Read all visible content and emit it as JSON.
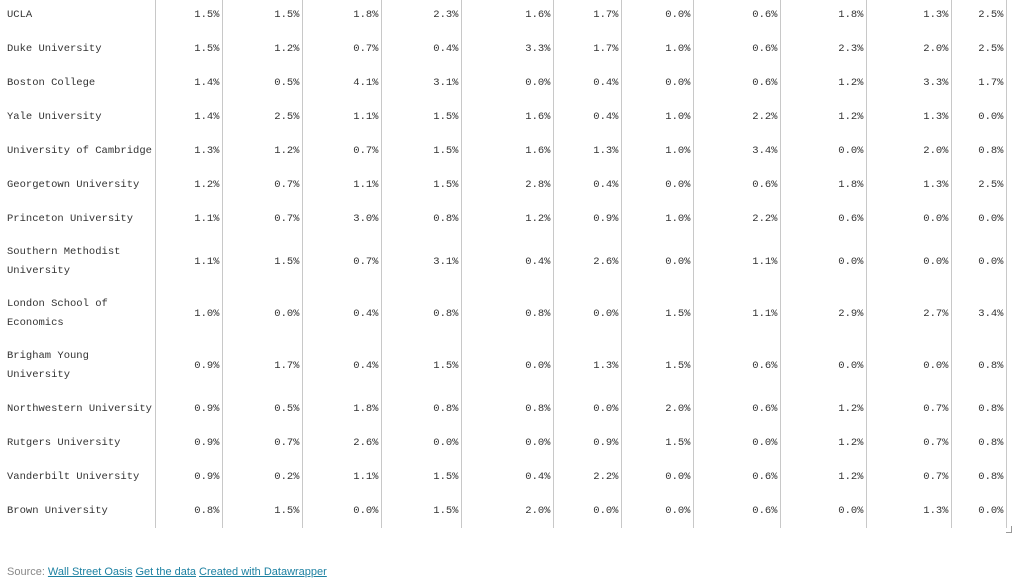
{
  "table": {
    "rows": [
      {
        "name": "UCLA",
        "values": [
          "1.5%",
          "1.5%",
          "1.8%",
          "2.3%",
          "1.6%",
          "1.7%",
          "0.0%",
          "0.6%",
          "1.8%",
          "1.3%",
          "2.5%"
        ]
      },
      {
        "name": "Duke University",
        "values": [
          "1.5%",
          "1.2%",
          "0.7%",
          "0.4%",
          "3.3%",
          "1.7%",
          "1.0%",
          "0.6%",
          "2.3%",
          "2.0%",
          "2.5%"
        ]
      },
      {
        "name": "Boston College",
        "values": [
          "1.4%",
          "0.5%",
          "4.1%",
          "3.1%",
          "0.0%",
          "0.4%",
          "0.0%",
          "0.6%",
          "1.2%",
          "3.3%",
          "1.7%"
        ]
      },
      {
        "name": "Yale University",
        "values": [
          "1.4%",
          "2.5%",
          "1.1%",
          "1.5%",
          "1.6%",
          "0.4%",
          "1.0%",
          "2.2%",
          "1.2%",
          "1.3%",
          "0.0%"
        ]
      },
      {
        "name": "University of Cambridge",
        "values": [
          "1.3%",
          "1.2%",
          "0.7%",
          "1.5%",
          "1.6%",
          "1.3%",
          "1.0%",
          "3.4%",
          "0.0%",
          "2.0%",
          "0.8%"
        ]
      },
      {
        "name": "Georgetown University",
        "values": [
          "1.2%",
          "0.7%",
          "1.1%",
          "1.5%",
          "2.8%",
          "0.4%",
          "0.0%",
          "0.6%",
          "1.8%",
          "1.3%",
          "2.5%"
        ]
      },
      {
        "name": "Princeton University",
        "values": [
          "1.1%",
          "0.7%",
          "3.0%",
          "0.8%",
          "1.2%",
          "0.9%",
          "1.0%",
          "2.2%",
          "0.6%",
          "0.0%",
          "0.0%"
        ]
      },
      {
        "name": "Southern Methodist University",
        "values": [
          "1.1%",
          "1.5%",
          "0.7%",
          "3.1%",
          "0.4%",
          "2.6%",
          "0.0%",
          "1.1%",
          "0.0%",
          "0.0%",
          "0.0%"
        ]
      },
      {
        "name": "London School of Economics",
        "values": [
          "1.0%",
          "0.0%",
          "0.4%",
          "0.8%",
          "0.8%",
          "0.0%",
          "1.5%",
          "1.1%",
          "2.9%",
          "2.7%",
          "3.4%"
        ]
      },
      {
        "name": "Brigham Young University",
        "values": [
          "0.9%",
          "1.7%",
          "0.4%",
          "1.5%",
          "0.0%",
          "1.3%",
          "1.5%",
          "0.6%",
          "0.0%",
          "0.0%",
          "0.8%"
        ]
      },
      {
        "name": "Northwestern University",
        "values": [
          "0.9%",
          "0.5%",
          "1.8%",
          "0.8%",
          "0.8%",
          "0.0%",
          "2.0%",
          "0.6%",
          "1.2%",
          "0.7%",
          "0.8%"
        ]
      },
      {
        "name": "Rutgers University",
        "values": [
          "0.9%",
          "0.7%",
          "2.6%",
          "0.0%",
          "0.0%",
          "0.9%",
          "1.5%",
          "0.0%",
          "1.2%",
          "0.7%",
          "0.8%"
        ]
      },
      {
        "name": "Vanderbilt University",
        "values": [
          "0.9%",
          "0.2%",
          "1.1%",
          "1.5%",
          "0.4%",
          "2.2%",
          "0.0%",
          "0.6%",
          "1.2%",
          "0.7%",
          "0.8%"
        ]
      },
      {
        "name": "Brown University",
        "values": [
          "0.8%",
          "1.5%",
          "0.0%",
          "1.5%",
          "2.0%",
          "0.0%",
          "0.0%",
          "0.6%",
          "0.0%",
          "1.3%",
          "0.0%"
        ]
      }
    ]
  },
  "footer": {
    "source_label": "Source:",
    "links": [
      "Wall Street Oasis",
      "Get the data",
      "Created with Datawrapper"
    ]
  }
}
